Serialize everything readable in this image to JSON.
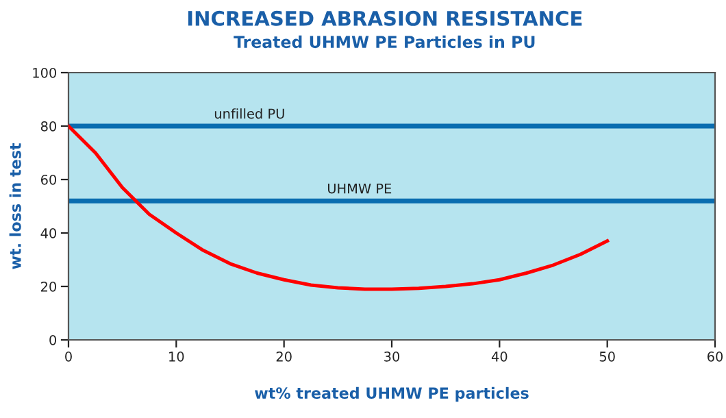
{
  "chart_data": {
    "type": "line",
    "title": "INCREASED ABRASION RESISTANCE",
    "subtitle": "Treated UHMW PE Particles in PU",
    "xlabel": "wt% treated UHMW PE particles",
    "ylabel": "wt. loss in test",
    "x": [
      0,
      2.5,
      5,
      7.5,
      10,
      12.5,
      15,
      17.5,
      20,
      22.5,
      25,
      27.5,
      30,
      32.5,
      35,
      37.5,
      40,
      42.5,
      45,
      47.5,
      50
    ],
    "series": [
      {
        "color": "#ff0000",
        "values": [
          80,
          70,
          57,
          47,
          40,
          33.5,
          28.5,
          25,
          22.5,
          20.5,
          19.5,
          19,
          19,
          19.3,
          20,
          21,
          22.5,
          25,
          28,
          32,
          37
        ]
      }
    ],
    "xlim": [
      0,
      60
    ],
    "xticks": [
      0,
      10,
      20,
      30,
      40,
      50,
      60
    ],
    "ylim": [
      0,
      100
    ],
    "yticks": [
      0,
      20,
      40,
      60,
      80,
      100
    ],
    "ref_lines": [
      {
        "axis": "y",
        "value": 80,
        "label": "unfilled PU",
        "color": "#0a6db0"
      },
      {
        "axis": "y",
        "value": 52,
        "label": "UHMW PE",
        "color": "#0a6db0"
      }
    ],
    "grid": false,
    "legend": false,
    "marker": "none",
    "line_style": "solid"
  }
}
